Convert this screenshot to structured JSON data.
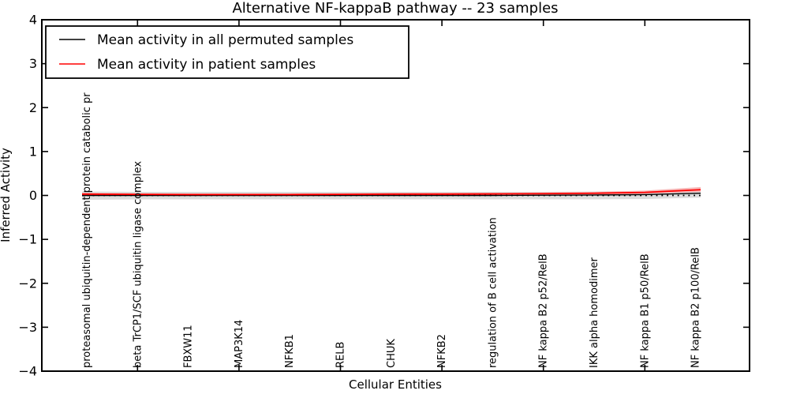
{
  "title": "Alternative NF-kappaB pathway -- 23 samples",
  "axes": {
    "ylabel": "Inferred Activity",
    "xlabel": "Cellular Entities",
    "yticks": [
      "4",
      "3",
      "2",
      "1",
      "0",
      "−1",
      "−2",
      "−3",
      "−4"
    ]
  },
  "legend": {
    "items": [
      {
        "label": "Mean activity in all permuted samples",
        "color": "#000000"
      },
      {
        "label": "Mean activity in patient samples",
        "color": "#ff0000"
      }
    ]
  },
  "chart_data": {
    "type": "line",
    "title": "Alternative NF-kappaB pathway -- 23 samples",
    "xlabel": "Cellular Entities",
    "ylabel": "Inferred Activity",
    "ylim": [
      -4,
      4
    ],
    "grid": false,
    "legend_position": "upper left",
    "zero_line": {
      "y": 0,
      "style": "dotted",
      "color": "#000000"
    },
    "categories": [
      "proteasomal ubiquitin-dependent protein catabolic pr",
      "beta TrCP1/SCF ubiquitin ligase complex",
      "FBXW11",
      "MAP3K14",
      "NFKB1",
      "RELB",
      "CHUK",
      "NFKB2",
      "regulation of B cell activation",
      "NF kappa B2 p52/RelB",
      "IKK alpha homodimer",
      "NF kappa B1 p50/RelB",
      "NF kappa B2 p100/RelB"
    ],
    "series": [
      {
        "name": "Mean activity in all permuted samples",
        "color": "#000000",
        "width": 1.4,
        "values": [
          0.0,
          0.0,
          0.0,
          0.0,
          0.0,
          0.0,
          0.0,
          0.0,
          0.0,
          0.005,
          0.01,
          0.02,
          0.05
        ]
      },
      {
        "name": "Mean activity in patient samples",
        "color": "#ff0000",
        "width": 1.8,
        "values": [
          0.03,
          0.025,
          0.02,
          0.02,
          0.02,
          0.025,
          0.03,
          0.03,
          0.035,
          0.04,
          0.05,
          0.07,
          0.13
        ]
      }
    ],
    "bands": [
      {
        "name": "permuted-activity-range",
        "color": "#dcdcdc",
        "upper": [
          0.09,
          0.08,
          0.08,
          0.08,
          0.08,
          0.08,
          0.08,
          0.08,
          0.08,
          0.08,
          0.09,
          0.1,
          0.12
        ],
        "lower": [
          -0.1,
          -0.09,
          -0.09,
          -0.09,
          -0.09,
          -0.09,
          -0.09,
          -0.09,
          -0.09,
          -0.09,
          -0.09,
          -0.08,
          -0.05
        ]
      },
      {
        "name": "patient-activity-range",
        "color": "#f7b6b6",
        "upper": [
          0.06,
          0.05,
          0.045,
          0.045,
          0.045,
          0.05,
          0.055,
          0.06,
          0.06,
          0.07,
          0.08,
          0.11,
          0.19
        ],
        "lower": [
          0.0,
          0.0,
          0.0,
          0.0,
          0.0,
          0.0,
          0.005,
          0.005,
          0.01,
          0.015,
          0.02,
          0.04,
          0.08
        ]
      }
    ]
  }
}
